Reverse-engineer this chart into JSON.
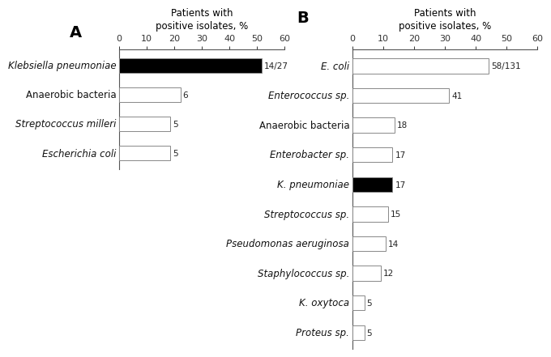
{
  "panel_a": {
    "label": "A",
    "n": 27,
    "categories": [
      "Klebsiella pneumoniae",
      "Anaerobic bacteria",
      "Streptococcus milleri",
      "Escherichia coli"
    ],
    "italic": [
      true,
      false,
      true,
      true
    ],
    "values": [
      51.85,
      22.22,
      18.52,
      18.52
    ],
    "annotations": [
      "14/27",
      "6",
      "5",
      "5"
    ],
    "black_bar": [
      true,
      false,
      false,
      false
    ]
  },
  "panel_b": {
    "label": "B",
    "n": 131,
    "categories": [
      "E. coli",
      "Enterococcus sp.",
      "Anaerobic bacteria",
      "Enterobacter sp.",
      "K. pneumoniae",
      "Streptococcus sp.",
      "Pseudomonas aeruginosa",
      "Staphylococcus sp.",
      "K. oxytoca",
      "Proteus sp."
    ],
    "italic": [
      true,
      true,
      false,
      true,
      true,
      true,
      true,
      true,
      true,
      true
    ],
    "values": [
      44.27,
      31.3,
      13.74,
      12.98,
      12.98,
      11.45,
      10.69,
      9.16,
      3.82,
      3.82
    ],
    "annotations": [
      "58/131",
      "41",
      "18",
      "17",
      "17",
      "15",
      "14",
      "12",
      "5",
      "5"
    ],
    "black_bar": [
      false,
      false,
      false,
      false,
      true,
      false,
      false,
      false,
      false,
      false
    ]
  },
  "xlabel": "Patients with\npositive isolates, %",
  "xlim": [
    0,
    60
  ],
  "xticks": [
    0,
    10,
    20,
    30,
    40,
    50,
    60
  ],
  "bar_color_white": "#ffffff",
  "bar_color_black": "#000000",
  "bar_edge_color": "#888888",
  "bg_color": "#ffffff",
  "label_fontsize": 8.5,
  "annot_fontsize": 7.5,
  "title_fontsize": 8.5,
  "panel_label_fontsize": 14
}
